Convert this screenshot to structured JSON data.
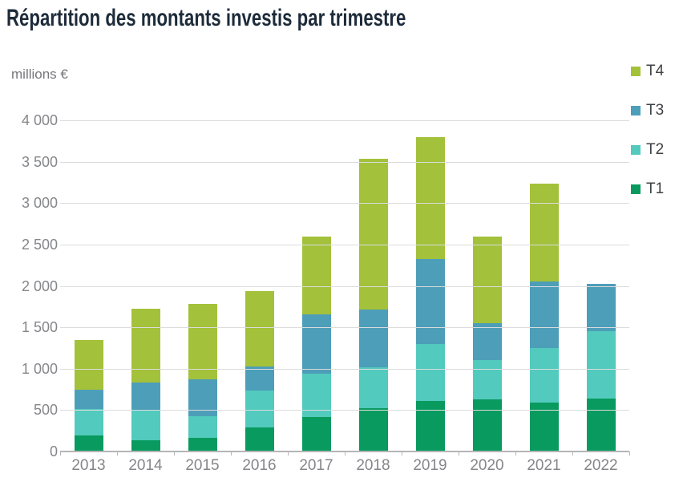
{
  "title": "Répartition des montants investis par trimestre",
  "unit_label": "millions €",
  "legend": [
    {
      "label": "T4",
      "color": "#a3c13a"
    },
    {
      "label": "T3",
      "color": "#4d9eb8"
    },
    {
      "label": "T2",
      "color": "#52cabe"
    },
    {
      "label": "T1",
      "color": "#089a5e"
    }
  ],
  "chart_data": {
    "type": "bar",
    "stacked": true,
    "title": "Répartition des montants investis par trimestre",
    "ylabel": "millions €",
    "xlabel": "",
    "ylim": [
      0,
      4000
    ],
    "ytick_step": 500,
    "yticks": [
      "4 000",
      "3 500",
      "3 000",
      "2 500",
      "2 000",
      "1 500",
      "1 000",
      "500",
      "0"
    ],
    "grid": true,
    "legend_position": "top-right",
    "categories": [
      "2013",
      "2014",
      "2015",
      "2016",
      "2017",
      "2018",
      "2019",
      "2020",
      "2021",
      "2022"
    ],
    "series": [
      {
        "name": "T1",
        "color": "#089a5e",
        "values": [
          195,
          140,
          165,
          295,
          420,
          520,
          610,
          625,
          595,
          640
        ]
      },
      {
        "name": "T2",
        "color": "#52cabe",
        "values": [
          315,
          365,
          260,
          440,
          520,
          495,
          685,
          475,
          655,
          810
        ]
      },
      {
        "name": "T3",
        "color": "#4d9eb8",
        "values": [
          240,
          325,
          450,
          295,
          715,
          695,
          1025,
          450,
          800,
          570
        ]
      },
      {
        "name": "T4",
        "color": "#a3c13a",
        "values": [
          600,
          895,
          905,
          910,
          945,
          1830,
          1480,
          1050,
          1190,
          0
        ]
      }
    ],
    "totals": [
      1350,
      1725,
      1780,
      1940,
      2600,
      3540,
      3800,
      2600,
      3240,
      2020
    ]
  },
  "colors": {
    "title_text": "#1d2b3a",
    "axis_text": "#85868a",
    "unit_text": "#75767a",
    "legend_text": "#3f4245",
    "gridline": "#dcdcdd",
    "axis_line": "#b4b5b7",
    "background": "#ffffff"
  }
}
